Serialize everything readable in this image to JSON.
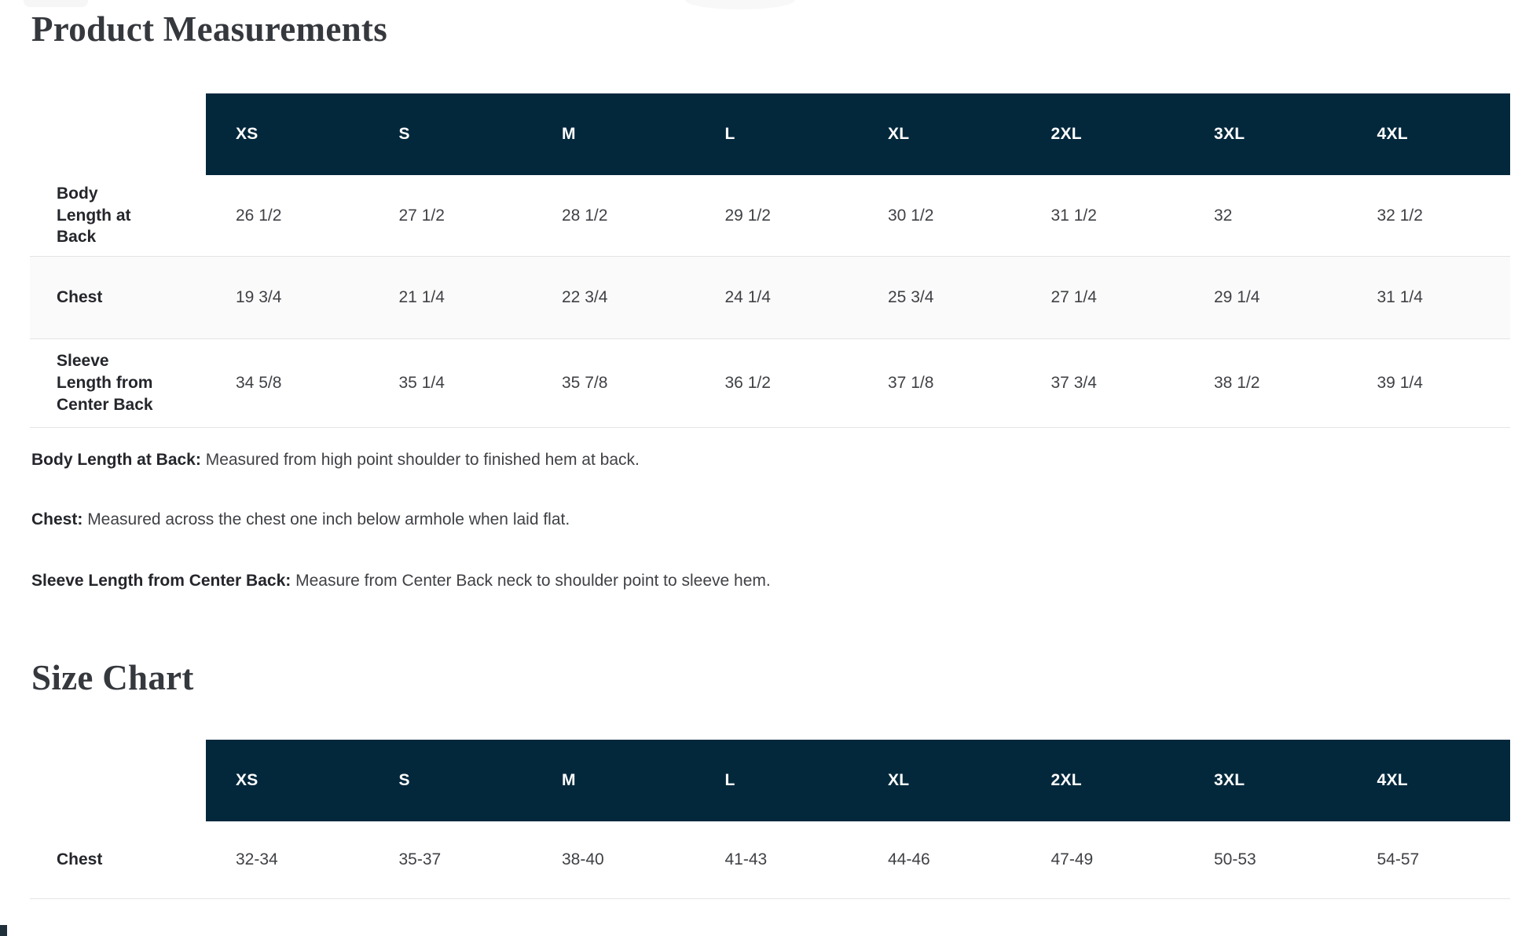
{
  "headings": {
    "product_measurements": "Product Measurements",
    "size_chart": "Size Chart"
  },
  "sizes": [
    "XS",
    "S",
    "M",
    "L",
    "XL",
    "2XL",
    "3XL",
    "4XL"
  ],
  "measurements_table": {
    "rows": [
      {
        "label": "Body Length at Back",
        "values": [
          "26 1/2",
          "27 1/2",
          "28 1/2",
          "29 1/2",
          "30 1/2",
          "31 1/2",
          "32",
          "32 1/2"
        ]
      },
      {
        "label": "Chest",
        "values": [
          "19 3/4",
          "21 1/4",
          "22 3/4",
          "24 1/4",
          "25 3/4",
          "27 1/4",
          "29 1/4",
          "31 1/4"
        ]
      },
      {
        "label": "Sleeve Length from Center Back",
        "values": [
          "34 5/8",
          "35 1/4",
          "35 7/8",
          "36 1/2",
          "37 1/8",
          "37 3/4",
          "38 1/2",
          "39 1/4"
        ]
      }
    ]
  },
  "notes": [
    {
      "term": "Body Length at Back:",
      "definition": "Measured from high point shoulder to finished hem at back."
    },
    {
      "term": "Chest:",
      "definition": "Measured across the chest one inch below armhole when laid flat."
    },
    {
      "term": "Sleeve Length from Center Back:",
      "definition": "Measure from Center Back neck to shoulder point to sleeve hem."
    }
  ],
  "size_chart_table": {
    "rows": [
      {
        "label": "Chest",
        "values": [
          "32-34",
          "35-37",
          "38-40",
          "41-43",
          "44-46",
          "47-49",
          "50-53",
          "54-57"
        ]
      }
    ]
  },
  "colors": {
    "header_bg": "#03283c",
    "header_text": "#ffffff",
    "alt_row_bg": "#fafafa",
    "divider": "#e4e4e4"
  }
}
